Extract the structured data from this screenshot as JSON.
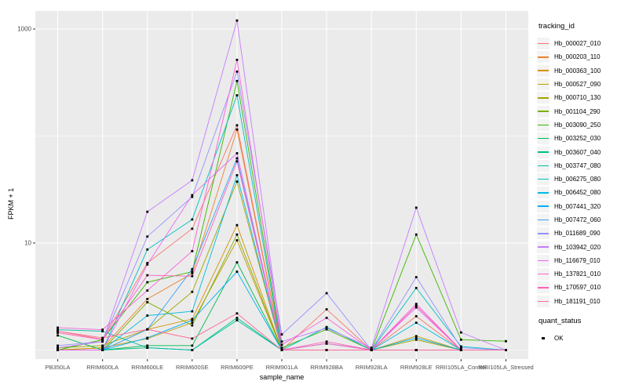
{
  "chart_data": {
    "type": "line",
    "title": "",
    "xlabel": "sample_name",
    "ylabel": "FPKM + 1",
    "yscale": "log10",
    "ylim": [
      0.85,
      1400
    ],
    "yticks": [
      {
        "label": "10",
        "value": 10
      },
      {
        "label": "1000",
        "value": 1000
      }
    ],
    "minor_gridlines": [
      1,
      100
    ],
    "grid": "on",
    "panel_color": "#ebebeb",
    "gridline_color": "#ffffff",
    "tick_text_color": "#4d4d4d",
    "point_color": "#000000",
    "legend_position": "right",
    "legend_title": "tracking_id",
    "quant_legend": {
      "title": "quant_status",
      "items": [
        {
          "label": "OK",
          "marker": "black-square"
        }
      ]
    },
    "categories": [
      "PB350LA",
      "RRIM600LA",
      "RRIM600LE",
      "RRIM600SE",
      "RRIM600PE",
      "RRIM901LA",
      "RRIM928BA",
      "RRIM928LA",
      "RRIM928LE",
      "RRII105LA_Control",
      "RRII105LA_Stressed"
    ],
    "series": [
      {
        "name": "Hb_000027_010",
        "color": "#F8766D",
        "values": [
          1.5,
          1.26,
          6.5,
          13.6,
          126,
          1.0,
          2.4,
          1.0,
          2.07,
          1.0,
          1.0
        ]
      },
      {
        "name": "Hb_000203_110",
        "color": "#EA8331",
        "values": [
          1.0,
          1.05,
          3.0,
          5.2,
          115,
          1.0,
          1.15,
          1.0,
          1.0,
          1.0,
          1.0
        ]
      },
      {
        "name": "Hb_000363_100",
        "color": "#D89000",
        "values": [
          1.0,
          1.0,
          1.56,
          1.95,
          14.7,
          1.0,
          1.0,
          1.0,
          1.0,
          1.0,
          1.0
        ]
      },
      {
        "name": "Hb_000527_090",
        "color": "#C09B00",
        "values": [
          1.0,
          1.05,
          1.28,
          1.8,
          10.6,
          1.0,
          1.0,
          1.0,
          1.35,
          1.0,
          1.0
        ]
      },
      {
        "name": "Hb_000710_130",
        "color": "#A3A500",
        "values": [
          1.05,
          1.1,
          1.56,
          3.5,
          37.5,
          1.0,
          1.0,
          1.0,
          1.25,
          1.0,
          1.0
        ]
      },
      {
        "name": "Hb_001104_290",
        "color": "#7CAE00",
        "values": [
          1.0,
          1.0,
          2.8,
          1.7,
          12,
          1.0,
          1.15,
          1.0,
          1.0,
          1.0,
          1.0
        ]
      },
      {
        "name": "Hb_003090_250",
        "color": "#39B600",
        "values": [
          1.0,
          1.25,
          4.3,
          5.4,
          327,
          1.05,
          1.56,
          1.0,
          12,
          1.25,
          1.21
        ]
      },
      {
        "name": "Hb_003252_030",
        "color": "#00BB4E",
        "values": [
          1.37,
          1.0,
          1.1,
          1.1,
          6.6,
          1.0,
          1.0,
          1.0,
          1.0,
          1.0,
          1.0
        ]
      },
      {
        "name": "Hb_003607_040",
        "color": "#00BF7D",
        "values": [
          1.0,
          1.0,
          1.05,
          1.0,
          2.0,
          1.0,
          1.0,
          1.0,
          1.0,
          1.0,
          1.0
        ]
      },
      {
        "name": "Hb_003747_080",
        "color": "#00C1A3",
        "values": [
          1.55,
          1.5,
          1.05,
          1.0,
          1.9,
          1.0,
          1.0,
          1.0,
          1.0,
          1.0,
          1.0
        ]
      },
      {
        "name": "Hb_006275_080",
        "color": "#00BFC4",
        "values": [
          1.0,
          1.0,
          8.7,
          16.6,
          240,
          1.0,
          1.64,
          1.0,
          3.8,
          1.08,
          1.0
        ]
      },
      {
        "name": "Hb_006452_080",
        "color": "#00BAE0",
        "values": [
          1.0,
          1.0,
          2.1,
          2.3,
          43,
          1.0,
          1.0,
          1.0,
          1.8,
          1.0,
          1.0
        ]
      },
      {
        "name": "Hb_007441_320",
        "color": "#00B0F6",
        "values": [
          1.0,
          1.0,
          1.3,
          1.9,
          5.4,
          1.0,
          1.0,
          1.0,
          1.3,
          1.0,
          1.0
        ]
      },
      {
        "name": "Hb_007472_060",
        "color": "#35A2FF",
        "values": [
          1.0,
          1.0,
          1.56,
          5.7,
          62,
          1.0,
          1.0,
          1.0,
          1.0,
          1.0,
          1.0
        ]
      },
      {
        "name": "Hb_011689_090",
        "color": "#9590FF",
        "values": [
          1.1,
          1.2,
          11.5,
          27,
          400,
          1.4,
          3.4,
          1.0,
          4.8,
          1.05,
          1.0
        ]
      },
      {
        "name": "Hb_103942_020",
        "color": "#C77CFF",
        "values": [
          1.05,
          1.2,
          19.6,
          38.6,
          1200,
          1.2,
          1.6,
          1.05,
          21.4,
          1.46,
          1.0
        ]
      },
      {
        "name": "Hb_116679_010",
        "color": "#E76BF3",
        "values": [
          1.0,
          1.0,
          6.3,
          28,
          69,
          1.0,
          1.15,
          1.0,
          2.5,
          1.0,
          1.0
        ]
      },
      {
        "name": "Hb_137821_010",
        "color": "#FA62DB",
        "values": [
          1.62,
          1.55,
          3.6,
          8.4,
          515,
          1.12,
          2.0,
          1.0,
          2.7,
          1.0,
          1.0
        ]
      },
      {
        "name": "Hb_170597_010",
        "color": "#FF62BC",
        "values": [
          1.45,
          1.25,
          5.0,
          4.9,
          58,
          1.0,
          1.2,
          1.0,
          2.6,
          1.0,
          1.0
        ]
      },
      {
        "name": "Hb_181191_010",
        "color": "#FF6A98",
        "values": [
          1.5,
          1.3,
          1.56,
          1.28,
          2.2,
          1.0,
          1.0,
          1.0,
          1.0,
          1.0,
          1.0
        ]
      }
    ]
  }
}
